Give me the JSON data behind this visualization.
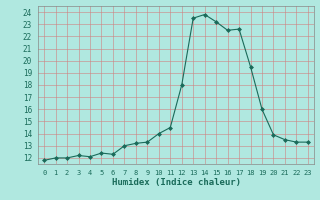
{
  "x": [
    0,
    1,
    2,
    3,
    4,
    5,
    6,
    7,
    8,
    9,
    10,
    11,
    12,
    13,
    14,
    15,
    16,
    17,
    18,
    19,
    20,
    21,
    22,
    23
  ],
  "y": [
    11.8,
    12.0,
    12.0,
    12.2,
    12.1,
    12.4,
    12.3,
    13.0,
    13.2,
    13.3,
    14.0,
    14.5,
    18.0,
    23.5,
    23.8,
    23.2,
    22.5,
    22.6,
    19.5,
    16.0,
    13.9,
    13.5,
    13.3,
    13.3
  ],
  "line_color": "#1a6b5a",
  "marker": "D",
  "marker_size": 2.0,
  "background_color": "#b0e8e0",
  "grid_color": "#d08080",
  "xlabel": "Humidex (Indice chaleur)",
  "ylim": [
    11.5,
    24.5
  ],
  "xlim": [
    -0.5,
    23.5
  ],
  "yticks": [
    12,
    13,
    14,
    15,
    16,
    17,
    18,
    19,
    20,
    21,
    22,
    23,
    24
  ],
  "xticks": [
    0,
    1,
    2,
    3,
    4,
    5,
    6,
    7,
    8,
    9,
    10,
    11,
    12,
    13,
    14,
    15,
    16,
    17,
    18,
    19,
    20,
    21,
    22,
    23
  ]
}
